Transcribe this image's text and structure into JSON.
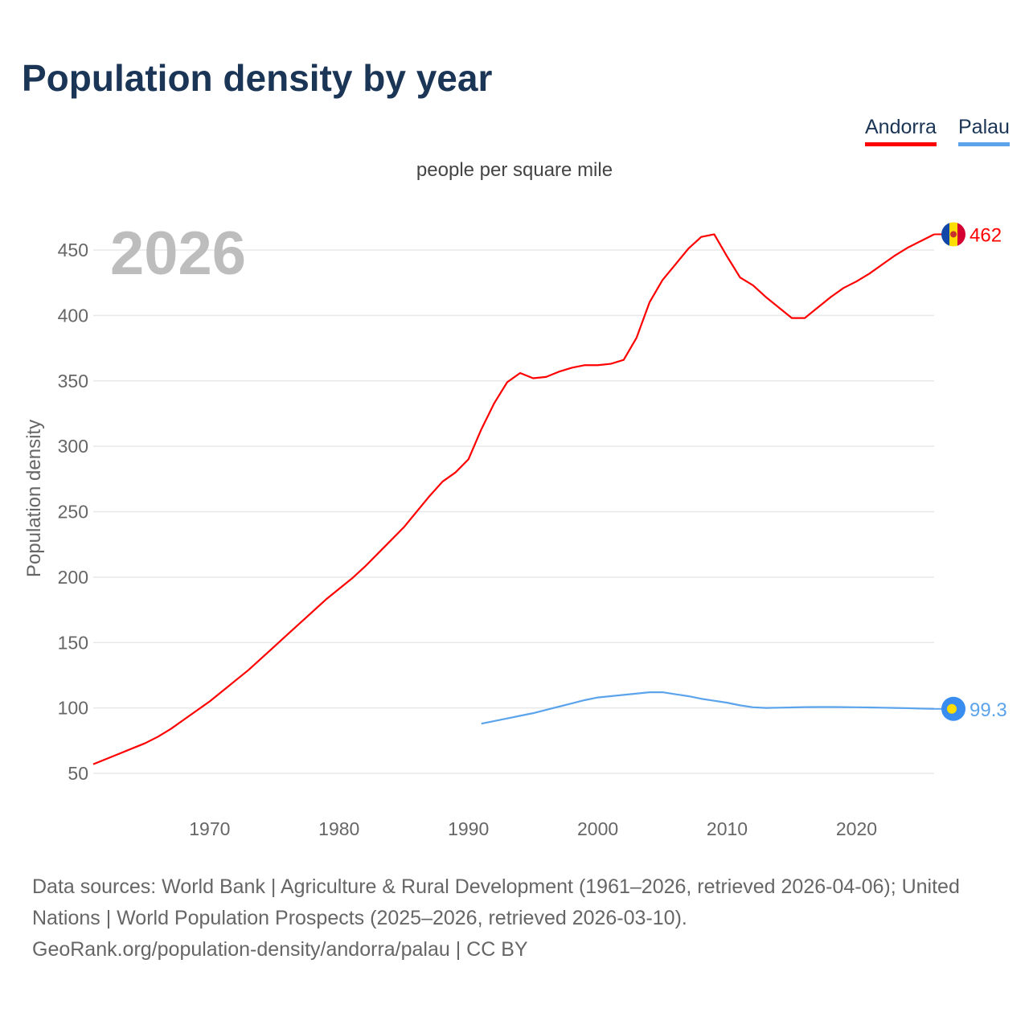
{
  "title": "Population density by year",
  "subtitle": "people per square mile",
  "year_label": "2026",
  "legend": [
    {
      "label": "Andorra",
      "color": "#ff0000"
    },
    {
      "label": "Palau",
      "color": "#5ba4ec"
    }
  ],
  "footer": {
    "sources": "Data sources: World Bank | Agriculture & Rural Development (1961–2026, retrieved 2026-04-06); United Nations | World Population Prospects (2025–2026, retrieved 2026-03-10).",
    "credit": "GeoRank.org/population-density/andorra/palau | CC BY"
  },
  "chart_data": {
    "type": "line",
    "title": "Population density by year",
    "subtitle": "people per square mile",
    "xlabel": "",
    "ylabel": "Population density",
    "xlim": [
      1961,
      2026
    ],
    "ylim": [
      30,
      475
    ],
    "xticks": [
      1970,
      1980,
      1990,
      2000,
      2010,
      2020
    ],
    "yticks": [
      50,
      100,
      150,
      200,
      250,
      300,
      350,
      400,
      450
    ],
    "grid": true,
    "legend_position": "top-right",
    "series": [
      {
        "name": "Andorra",
        "color": "#ff0000",
        "end_label": "462",
        "x": [
          1961,
          1962,
          1963,
          1964,
          1965,
          1966,
          1967,
          1968,
          1969,
          1970,
          1971,
          1972,
          1973,
          1974,
          1975,
          1976,
          1977,
          1978,
          1979,
          1980,
          1981,
          1982,
          1983,
          1984,
          1985,
          1986,
          1987,
          1988,
          1989,
          1990,
          1991,
          1992,
          1993,
          1994,
          1995,
          1996,
          1997,
          1998,
          1999,
          2000,
          2001,
          2002,
          2003,
          2004,
          2005,
          2006,
          2007,
          2008,
          2009,
          2010,
          2011,
          2012,
          2013,
          2014,
          2015,
          2016,
          2017,
          2018,
          2019,
          2020,
          2021,
          2022,
          2023,
          2024,
          2025,
          2026
        ],
        "y": [
          57,
          61,
          65,
          69,
          73,
          78,
          84,
          91,
          98,
          105,
          113,
          121,
          129,
          138,
          147,
          156,
          165,
          174,
          183,
          191,
          199,
          208,
          218,
          228,
          238,
          250,
          262,
          273,
          280,
          290,
          313,
          333,
          349,
          356,
          352,
          353,
          357,
          360,
          362,
          362,
          363,
          366,
          383,
          410,
          427,
          439,
          451,
          460,
          462,
          445,
          429,
          423,
          414,
          406,
          398,
          398,
          406,
          414,
          421,
          426,
          432,
          439,
          446,
          452,
          457,
          462
        ]
      },
      {
        "name": "Palau",
        "color": "#5ba4ec",
        "end_label": "99.3",
        "x": [
          1991,
          1992,
          1993,
          1994,
          1995,
          1996,
          1997,
          1998,
          1999,
          2000,
          2001,
          2002,
          2003,
          2004,
          2005,
          2006,
          2007,
          2008,
          2009,
          2010,
          2011,
          2012,
          2013,
          2014,
          2015,
          2016,
          2017,
          2018,
          2019,
          2020,
          2021,
          2022,
          2023,
          2024,
          2025,
          2026
        ],
        "y": [
          88,
          90,
          92,
          94,
          96,
          98.5,
          101,
          103.5,
          106,
          108,
          109,
          110,
          111,
          112,
          112,
          110.5,
          109,
          107,
          105.5,
          104,
          102,
          100.5,
          100,
          100.2,
          100.4,
          100.6,
          100.7,
          100.7,
          100.6,
          100.5,
          100.4,
          100.2,
          100,
          99.8,
          99.5,
          99.3
        ]
      }
    ]
  }
}
